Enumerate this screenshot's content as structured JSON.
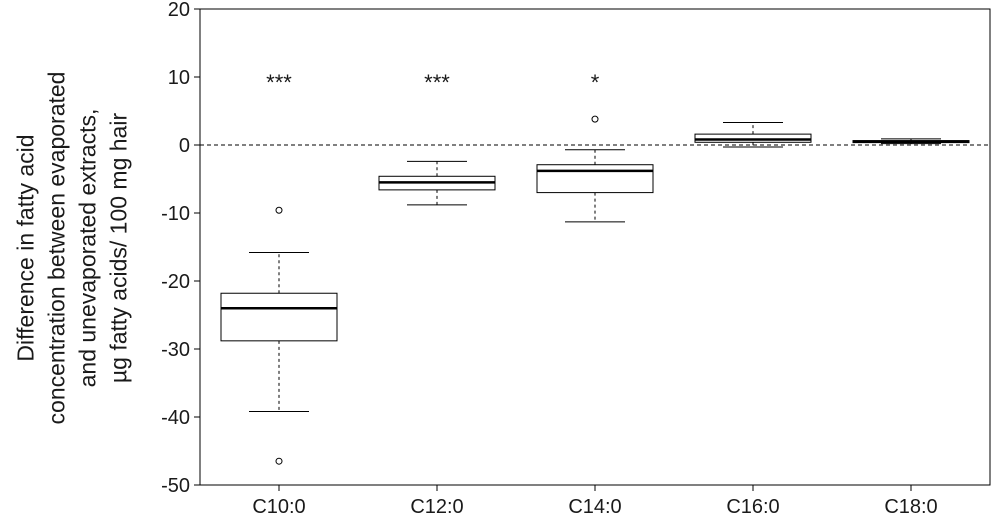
{
  "chart_data": {
    "type": "box",
    "ylabel_lines": [
      "Difference in fatty acid",
      "concentration between evaporated",
      "and unevaporated extracts,",
      "µg fatty acids/ 100 mg hair"
    ],
    "ylim": [
      -50,
      20
    ],
    "yticks": [
      20,
      10,
      0,
      -10,
      -20,
      -30,
      -40,
      -50
    ],
    "reference_line_y": 0,
    "categories": [
      "C10:0",
      "C12:0",
      "C14:0",
      "C16:0",
      "C18:0"
    ],
    "boxes": [
      {
        "category": "C10:0",
        "whisker_low": -39.2,
        "q1": -28.8,
        "median": -24.0,
        "q3": -21.8,
        "whisker_high": -15.8,
        "outliers": [
          -9.6,
          -46.5
        ],
        "significance": "***"
      },
      {
        "category": "C12:0",
        "whisker_low": -8.8,
        "q1": -6.6,
        "median": -5.5,
        "q3": -4.6,
        "whisker_high": -2.4,
        "outliers": [],
        "significance": "***"
      },
      {
        "category": "C14:0",
        "whisker_low": -11.3,
        "q1": -7.0,
        "median": -3.8,
        "q3": -2.9,
        "whisker_high": -0.7,
        "outliers": [
          3.8
        ],
        "significance": "*"
      },
      {
        "category": "C16:0",
        "whisker_low": -0.3,
        "q1": 0.4,
        "median": 0.8,
        "q3": 1.6,
        "whisker_high": 3.3,
        "outliers": [],
        "significance": ""
      },
      {
        "category": "C18:0",
        "whisker_low": 0.2,
        "q1": 0.35,
        "median": 0.5,
        "q3": 0.65,
        "whisker_high": 0.9,
        "outliers": [],
        "significance": ""
      }
    ],
    "significance_y": 10,
    "grid": false,
    "legend": "none"
  }
}
